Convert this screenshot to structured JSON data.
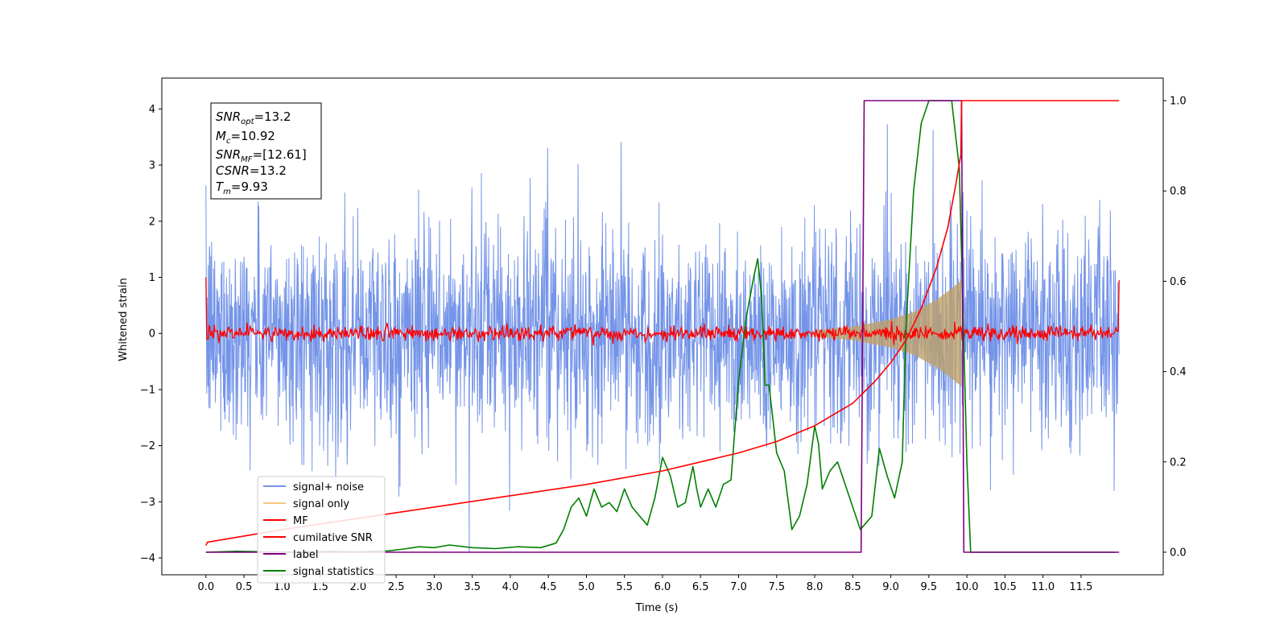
{
  "chart_data": {
    "type": "line",
    "xlabel": "Time (s)",
    "ylabel_left": "Whitened strain",
    "xlim": [
      -0.58,
      12.58
    ],
    "ylim_left": [
      -4.3,
      4.55
    ],
    "ylim_right": [
      -0.05,
      1.05
    ],
    "x_ticks": [
      "0.0",
      "0.5",
      "1.0",
      "1.5",
      "2.0",
      "2.5",
      "3.0",
      "3.5",
      "4.0",
      "4.5",
      "5.0",
      "5.5",
      "6.0",
      "6.5",
      "7.0",
      "7.5",
      "8.0",
      "8.5",
      "9.0",
      "9.5",
      "10.0",
      "10.5",
      "11.0",
      "11.5"
    ],
    "y_ticks_left": [
      "−4",
      "−3",
      "−2",
      "−1",
      "0",
      "1",
      "2",
      "3",
      "4"
    ],
    "y_ticks_right": [
      "0.0",
      "0.2",
      "0.4",
      "0.6",
      "0.8",
      "1.0"
    ],
    "info_box": {
      "snr_opt": {
        "main": "SNR",
        "sub": "opt",
        "value": "=13.2"
      },
      "mc": {
        "main": "M",
        "sub": "c",
        "value": "=10.92"
      },
      "snr_mf": {
        "main": "SNR",
        "sub": "MF",
        "value": "=[12.61]"
      },
      "csnr": {
        "main": "CSNR",
        "sub": "",
        "value": "=13.2"
      },
      "tm": {
        "main": "T",
        "sub": "m",
        "value": "=9.93"
      }
    },
    "legend": {
      "placement": "lower-left",
      "entries": [
        "signal+ noise",
        "signal only",
        "MF",
        "cumilative SNR",
        "label",
        "signal statistics"
      ]
    },
    "colors": {
      "signal_noise": "#7494e8",
      "signal_only": "#f5c77e",
      "mf": "#ff0000",
      "cumulative_snr": "#ff0000",
      "label": "#800080",
      "signal_statistics": "#008000"
    },
    "series": [
      {
        "name": "signal+ noise",
        "axis": "left",
        "description_range": [
          -3.9,
          4.17
        ],
        "x_range": [
          0.0,
          12.0
        ]
      },
      {
        "name": "signal only",
        "axis": "left",
        "envelope": {
          "x": [
            8.0,
            8.5,
            9.0,
            9.3,
            9.6,
            9.8,
            9.93
          ],
          "amplitude": [
            0.05,
            0.12,
            0.25,
            0.38,
            0.6,
            0.8,
            0.95
          ]
        }
      },
      {
        "name": "MF",
        "axis": "left",
        "baseline": 0.0,
        "noise_amplitude": 0.15,
        "endpoints": [
          1.0,
          0.95
        ]
      },
      {
        "name": "cumilative SNR",
        "axis": "right",
        "x": [
          0.0,
          0.02,
          1.0,
          2.0,
          3.0,
          4.0,
          5.0,
          6.0,
          7.0,
          7.5,
          8.0,
          8.5,
          8.8,
          9.0,
          9.2,
          9.4,
          9.6,
          9.75,
          9.85,
          9.92,
          9.93,
          12.0
        ],
        "y": [
          0.015,
          0.022,
          0.05,
          0.075,
          0.1,
          0.125,
          0.15,
          0.18,
          0.22,
          0.245,
          0.28,
          0.33,
          0.38,
          0.42,
          0.47,
          0.54,
          0.63,
          0.72,
          0.81,
          0.88,
          1.0,
          1.0
        ]
      },
      {
        "name": "label",
        "axis": "right",
        "x": [
          0.0,
          8.61,
          8.65,
          9.93,
          9.96,
          12.0
        ],
        "y": [
          0.0,
          0.0,
          1.0,
          1.0,
          0.0,
          0.0
        ]
      },
      {
        "name": "signal statistics",
        "axis": "right",
        "x": [
          0.0,
          0.4,
          0.8,
          1.2,
          1.6,
          2.0,
          2.4,
          2.6,
          2.8,
          3.0,
          3.2,
          3.5,
          3.8,
          4.1,
          4.4,
          4.6,
          4.7,
          4.8,
          4.9,
          5.0,
          5.1,
          5.2,
          5.3,
          5.4,
          5.5,
          5.6,
          5.7,
          5.8,
          5.9,
          6.0,
          6.1,
          6.2,
          6.3,
          6.4,
          6.45,
          6.5,
          6.6,
          6.7,
          6.8,
          6.9,
          7.0,
          7.1,
          7.2,
          7.25,
          7.3,
          7.35,
          7.4,
          7.5,
          7.6,
          7.7,
          7.8,
          7.9,
          8.0,
          8.05,
          8.1,
          8.2,
          8.3,
          8.4,
          8.5,
          8.6,
          8.65,
          8.75,
          8.85,
          8.95,
          9.05,
          9.15,
          9.2,
          9.3,
          9.4,
          9.5,
          9.6,
          9.7,
          9.8,
          9.9,
          10.0,
          10.05,
          11.95
        ],
        "y": [
          0.0,
          0.002,
          0.001,
          0.0,
          0.002,
          0.001,
          0.003,
          0.007,
          0.012,
          0.01,
          0.016,
          0.01,
          0.008,
          0.012,
          0.01,
          0.02,
          0.05,
          0.1,
          0.12,
          0.08,
          0.14,
          0.1,
          0.11,
          0.09,
          0.14,
          0.1,
          0.08,
          0.06,
          0.12,
          0.21,
          0.17,
          0.1,
          0.11,
          0.19,
          0.14,
          0.1,
          0.14,
          0.1,
          0.15,
          0.16,
          0.38,
          0.52,
          0.61,
          0.65,
          0.57,
          0.37,
          0.37,
          0.22,
          0.18,
          0.05,
          0.08,
          0.15,
          0.28,
          0.24,
          0.14,
          0.18,
          0.2,
          0.15,
          0.1,
          0.05,
          0.06,
          0.08,
          0.23,
          0.17,
          0.12,
          0.2,
          0.5,
          0.8,
          0.95,
          1.0,
          1.0,
          1.0,
          1.0,
          0.85,
          0.2,
          0.0,
          0.0
        ]
      }
    ]
  }
}
